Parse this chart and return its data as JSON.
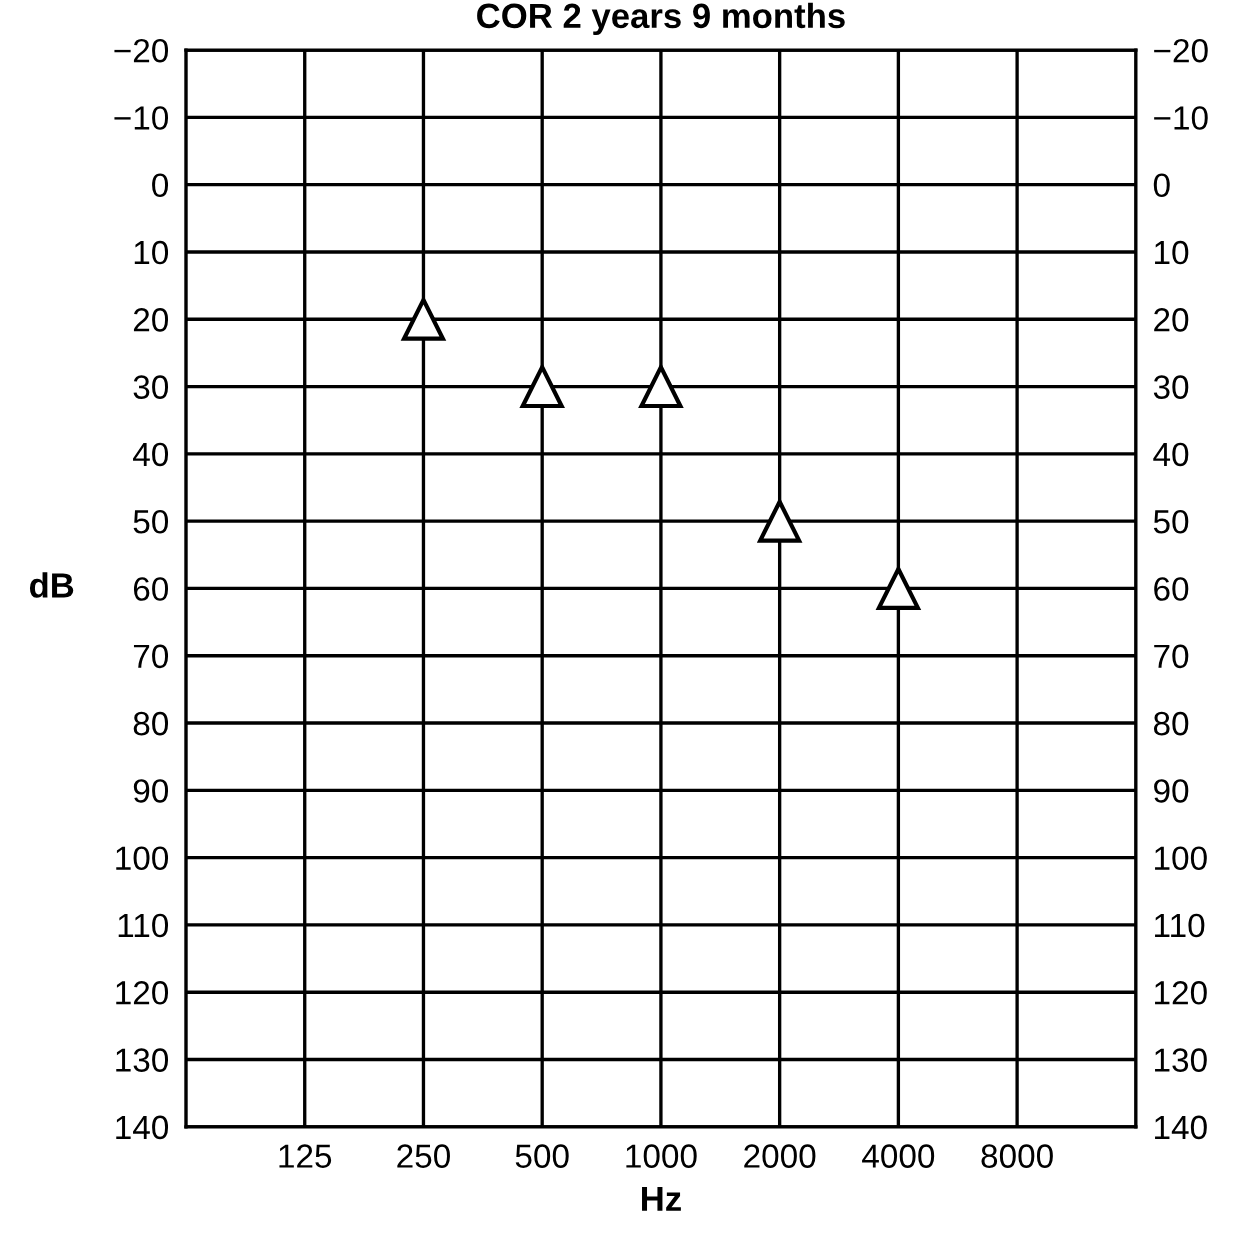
{
  "chart_data": {
    "type": "scatter",
    "title": "COR 2 years 9 months",
    "xlabel": "Hz",
    "ylabel": "dB",
    "log": "x",
    "x": [
      250,
      500,
      1000,
      2000,
      4000
    ],
    "values": [
      20,
      30,
      30,
      50,
      60
    ],
    "color": "#000000",
    "marker": "triangle",
    "grid": true,
    "xlim": [
      62.5,
      16000
    ],
    "xticks": [
      125,
      250,
      500,
      1000,
      2000,
      4000,
      8000
    ],
    "ylim": [
      140,
      -20
    ],
    "yticks": [
      {
        "value": -20,
        "label": "−20"
      },
      {
        "value": -10,
        "label": "−10"
      },
      0,
      10,
      20,
      30,
      40,
      50,
      60,
      70,
      80,
      90,
      100,
      110,
      120,
      130,
      140
    ],
    "y2lim": [
      140,
      -20
    ],
    "y2ticks": [
      {
        "value": -20,
        "label": "−20"
      },
      {
        "value": -10,
        "label": "−10"
      },
      0,
      10,
      20,
      30,
      40,
      50,
      60,
      70,
      80,
      90,
      100,
      110,
      120,
      130,
      140
    ]
  }
}
